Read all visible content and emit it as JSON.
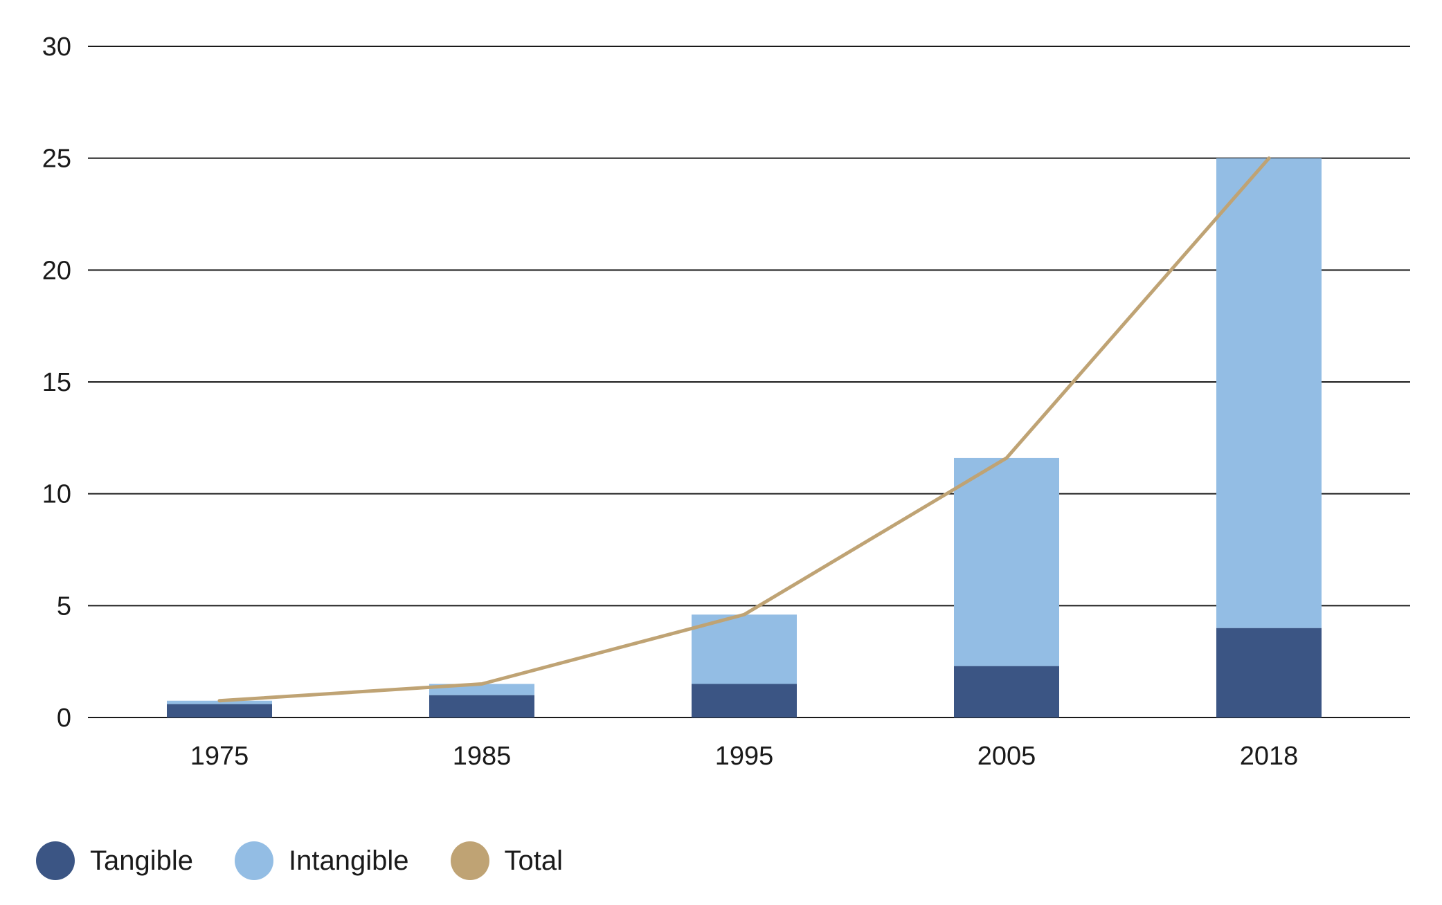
{
  "chart_data": {
    "type": "bar",
    "stacked": true,
    "categories": [
      "1975",
      "1985",
      "1995",
      "2005",
      "2018"
    ],
    "series": [
      {
        "name": "Tangible",
        "kind": "bar",
        "color": "#3b5584",
        "values": [
          0.6,
          1.0,
          1.5,
          2.3,
          4.0
        ]
      },
      {
        "name": "Intangible",
        "kind": "bar",
        "color": "#93bde4",
        "values": [
          0.15,
          0.5,
          3.1,
          9.3,
          21.0
        ]
      },
      {
        "name": "Total",
        "kind": "line",
        "color": "#bfa374",
        "values": [
          0.75,
          1.5,
          4.6,
          11.6,
          25.0
        ]
      }
    ],
    "yticks": [
      0,
      5,
      10,
      15,
      20,
      25,
      30
    ],
    "ylim": [
      0,
      30
    ],
    "title": "",
    "xlabel": "",
    "ylabel": "",
    "grid": true,
    "legend_position": "bottom-left"
  }
}
